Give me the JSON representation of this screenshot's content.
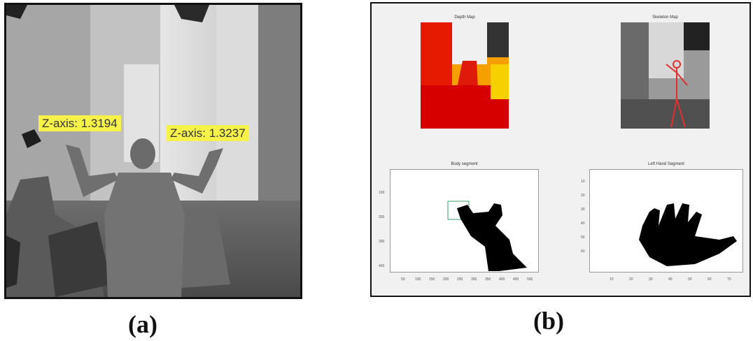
{
  "panel_a": {
    "caption": "(a)",
    "labels": [
      {
        "text": "Z-axis: 1.3194"
      },
      {
        "text": "Z-axis: 1.3237"
      }
    ]
  },
  "panel_b": {
    "caption": "(b)",
    "figures": [
      {
        "title": "Depth Map"
      },
      {
        "title": "Skeleton Map"
      },
      {
        "title": "Body segment"
      },
      {
        "title": "Left Hand Segment"
      }
    ],
    "body_segment_xticks": [
      "50",
      "100",
      "150",
      "200",
      "250",
      "300",
      "350",
      "400",
      "450",
      "500"
    ],
    "body_segment_yticks": [
      "100",
      "200",
      "300",
      "400"
    ],
    "hand_segment_xticks": [
      "10",
      "20",
      "30",
      "40",
      "50",
      "60",
      "70"
    ],
    "hand_segment_yticks": [
      "10",
      "20",
      "30",
      "40",
      "50",
      "60"
    ]
  }
}
